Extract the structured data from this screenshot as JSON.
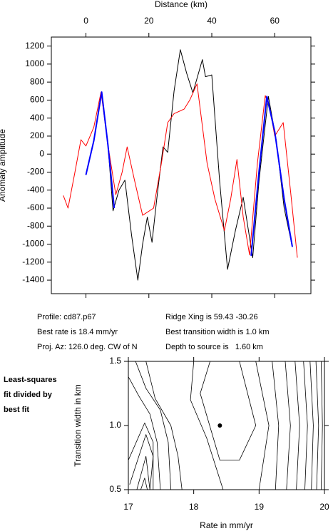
{
  "chart_data": [
    {
      "type": "line",
      "x_label": "Distance (km)",
      "y_label": "Anomaly amplitude",
      "xlim": [
        -11,
        71.5
      ],
      "xticks": [
        0,
        20,
        40,
        60
      ],
      "ylim": [
        -1550,
        1300
      ],
      "yticks": [
        -1400,
        -1200,
        -1000,
        -800,
        -600,
        -400,
        -200,
        0,
        200,
        400,
        600,
        800,
        1000,
        1200
      ],
      "series": [
        {
          "color": "#000000",
          "x": [
            0,
            2.5,
            5,
            7,
            8.6,
            10.5,
            12.4,
            14.5,
            16.5,
            18,
            19.5,
            21,
            22.5,
            24.5,
            26,
            28,
            30,
            32,
            34,
            37,
            38,
            40,
            42.5,
            45,
            47.5,
            50,
            53,
            55,
            58,
            60.5,
            63,
            65.6
          ],
          "values": [
            -230,
            150,
            690,
            100,
            -630,
            -400,
            -290,
            -900,
            -1400,
            -1000,
            -700,
            -980,
            -500,
            80,
            20,
            700,
            1160,
            900,
            680,
            1050,
            860,
            880,
            -300,
            -1280,
            -850,
            -480,
            -1150,
            -300,
            640,
            150,
            -600,
            -1030
          ]
        },
        {
          "color": "#ff0000",
          "x": [
            -7.2,
            -5.7,
            -3.5,
            -1.6,
            0,
            2.5,
            4.8,
            7,
            9.5,
            11.5,
            13.1,
            15.5,
            18,
            21.5,
            24,
            26,
            28,
            31.2,
            33,
            35.3,
            38.5,
            41,
            44,
            46,
            48,
            50,
            52,
            54.5,
            57,
            58.5,
            60,
            62.7,
            65,
            67.2
          ],
          "values": [
            -460,
            -600,
            -200,
            160,
            90,
            300,
            690,
            100,
            -450,
            -200,
            80,
            -300,
            -680,
            -600,
            -100,
            350,
            450,
            500,
            600,
            780,
            -100,
            -500,
            -850,
            -500,
            -60,
            -700,
            -1120,
            -100,
            650,
            500,
            200,
            350,
            -400,
            -1150
          ]
        },
        {
          "color": "#0000ff",
          "x": [
            0,
            2.5,
            5,
            7,
            9,
            30,
            52.5,
            55,
            57.5,
            60,
            63,
            65.6
          ],
          "values": [
            -230,
            150,
            690,
            100,
            -600,
            null,
            -1130,
            -200,
            640,
            250,
            -500,
            -1030
          ]
        }
      ],
      "annotations": [
        "Profile: cd87.p67",
        "Ridge Xing is 59.43 -30.26",
        "Best rate is 18.4 mm/yr",
        "Best transition width is 1.0 km",
        "Proj. Az: 126.0 deg. CW of N",
        "Depth to source is   1.60 km"
      ]
    },
    {
      "type": "contour",
      "notes": [
        "Least-squares",
        "fit divided by",
        "best fit"
      ],
      "x_label": "Rate in mm/yr",
      "y_label": "Transition width in km",
      "xlim": [
        17,
        20
      ],
      "xticks": [
        17,
        18,
        19,
        20
      ],
      "ylim": [
        0.5,
        1.5
      ],
      "yticks": [
        0.5,
        {
          "value": 1,
          "label": "1.0"
        },
        1.5
      ],
      "line_color": "#000000",
      "marker": {
        "x": 18.4,
        "y": 1.0
      },
      "contours": [
        {
          "x": [
            17.27,
            17.41,
            17.65,
            17.76,
            17.82
          ],
          "y": [
            1.5,
            1.21,
            1.0,
            0.76,
            0.5
          ]
        },
        {
          "x": [
            17.11,
            17.27,
            17.49,
            17.61,
            17.65
          ],
          "y": [
            1.5,
            1.29,
            1.12,
            0.87,
            0.5
          ]
        },
        {
          "x": [
            17,
            17.16,
            17.33,
            17.44,
            17.49
          ],
          "y": [
            1.38,
            1.23,
            1.09,
            0.87,
            0.5
          ]
        },
        {
          "x": [
            17,
            17.25,
            17.38,
            17.38
          ],
          "y": [
            0.73,
            1.02,
            0.87,
            0.5
          ]
        },
        {
          "x": [
            17.02,
            17.27,
            17.38,
            17.33
          ],
          "y": [
            0.54,
            0.93,
            0.76,
            0.5
          ]
        },
        {
          "x": [
            17.13,
            17.27,
            17.33
          ],
          "y": [
            0.5,
            0.76,
            0.5
          ]
        },
        {
          "x": [
            17.19,
            17.25,
            17.29
          ],
          "y": [
            0.5,
            0.59,
            0.5
          ]
        },
        {
          "x": [
            18.25,
            18.1,
            18.4,
            18.7,
            18.95,
            18.7
          ],
          "y": [
            1.5,
            1.25,
            0.73,
            0.73,
            1.0,
            1.5
          ]
        },
        {
          "x": [
            18.0,
            17.95,
            18.2,
            18.45
          ],
          "y": [
            1.5,
            1.2,
            0.9,
            0.5
          ]
        },
        {
          "x": [
            18.95,
            19.15,
            19.0
          ],
          "y": [
            1.5,
            1.0,
            0.5
          ]
        },
        {
          "x": [
            19.2,
            19.3,
            19.25
          ],
          "y": [
            1.5,
            1.0,
            0.5
          ]
        },
        {
          "x": [
            19.4,
            19.48,
            19.42
          ],
          "y": [
            1.5,
            1.0,
            0.5
          ]
        },
        {
          "x": [
            19.55,
            19.62,
            19.57
          ],
          "y": [
            1.5,
            1.0,
            0.5
          ]
        },
        {
          "x": [
            19.68,
            19.74,
            19.7
          ],
          "y": [
            1.5,
            1.0,
            0.5
          ]
        },
        {
          "x": [
            19.78,
            19.83,
            19.8
          ],
          "y": [
            1.5,
            1.0,
            0.5
          ]
        },
        {
          "x": [
            19.87,
            19.91,
            19.88
          ],
          "y": [
            1.5,
            1.0,
            0.5
          ]
        },
        {
          "x": [
            19.95,
            19.97,
            19.95
          ],
          "y": [
            1.5,
            1.0,
            0.5
          ]
        }
      ]
    }
  ]
}
